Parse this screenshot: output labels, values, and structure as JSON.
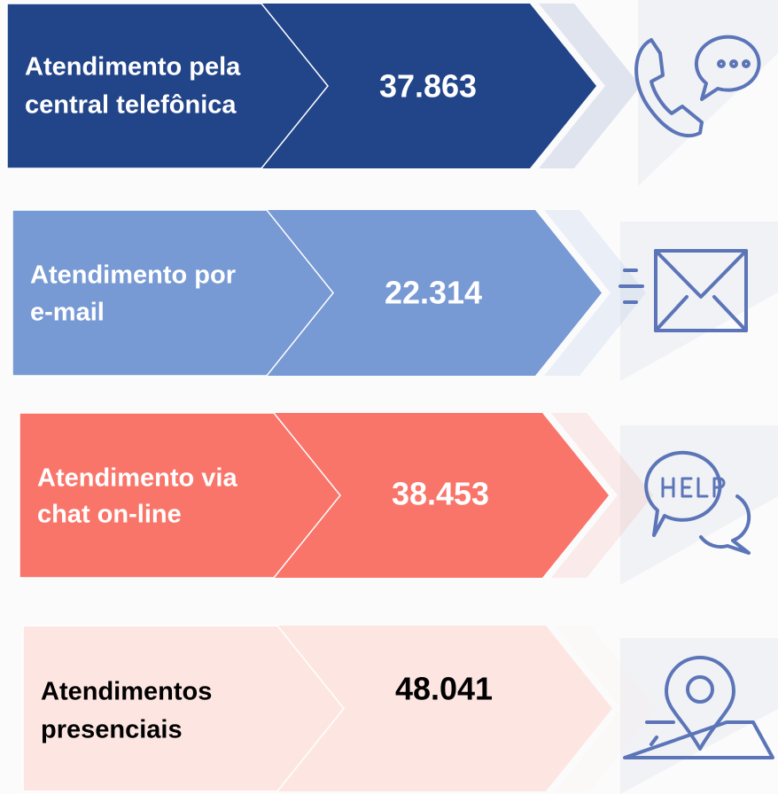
{
  "rows": [
    {
      "label": [
        "Atendimento pela",
        "central telefônica"
      ],
      "value": "37.863"
    },
    {
      "label": [
        "Atendimento por",
        "e-mail"
      ],
      "value": "22.314"
    },
    {
      "label": [
        "Atendimento via",
        "chat on-line"
      ],
      "value": "38.453"
    },
    {
      "label": [
        "Atendimentos",
        "presenciais"
      ],
      "value": "48.041"
    }
  ]
}
